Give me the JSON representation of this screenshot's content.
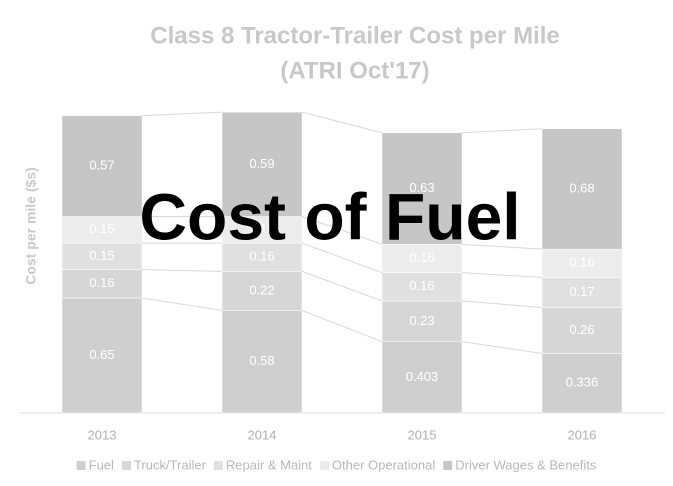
{
  "chart_data": {
    "type": "stacked_bar",
    "title": [
      "Class 8 Tractor-Trailer Cost per Mile",
      "(ATRI Oct'17)"
    ],
    "y_label": "Cost per mile ($s)",
    "annotation": "Cost of Fuel",
    "categories": [
      "2013",
      "2014",
      "2015",
      "2016"
    ],
    "ylim": [
      0,
      1.8
    ],
    "legend": "bottom",
    "series": [
      {
        "name": "Fuel",
        "color": "#cfcfcf",
        "values": [
          0.65,
          0.58,
          0.403,
          0.336
        ]
      },
      {
        "name": "Truck/Trailer",
        "color": "#d6d6d6",
        "values": [
          0.16,
          0.22,
          0.23,
          0.26
        ]
      },
      {
        "name": "Repair & Maint",
        "color": "#e0e0e0",
        "values": [
          0.15,
          0.16,
          0.16,
          0.17
        ]
      },
      {
        "name": "Other Operational",
        "color": "#ececec",
        "values": [
          0.15,
          0.15,
          0.16,
          0.16
        ]
      },
      {
        "name": "Driver Wages & Benefits",
        "color": "#c6c6c6",
        "values": [
          0.57,
          0.59,
          0.63,
          0.68
        ]
      }
    ]
  }
}
